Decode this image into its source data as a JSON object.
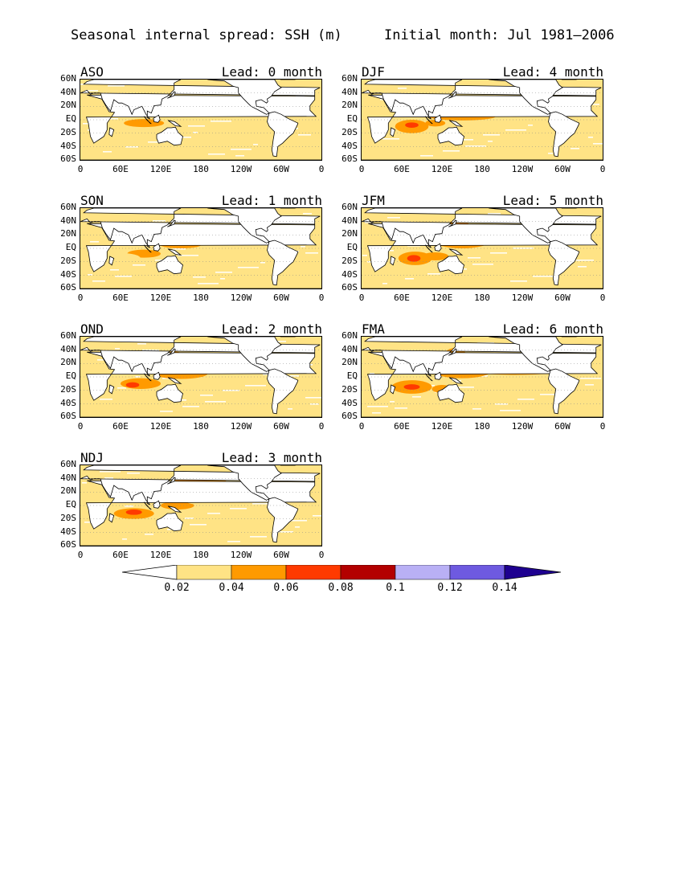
{
  "header": {
    "title_left": "Seasonal internal spread: SSH (m)",
    "title_right": "Initial month: Jul 1981—2006"
  },
  "axes": {
    "lat_labels": [
      "60N",
      "40N",
      "20N",
      "EQ",
      "20S",
      "40S",
      "60S"
    ],
    "lon_labels": [
      "0",
      "60E",
      "120E",
      "180",
      "120W",
      "60W",
      "0"
    ]
  },
  "panels": [
    {
      "season": "ASO",
      "lead": "Lead: 0 month"
    },
    {
      "season": "DJF",
      "lead": "Lead: 4 month"
    },
    {
      "season": "SON",
      "lead": "Lead: 1 month"
    },
    {
      "season": "JFM",
      "lead": "Lead: 5 month"
    },
    {
      "season": "OND",
      "lead": "Lead: 2 month"
    },
    {
      "season": "FMA",
      "lead": "Lead: 6 month"
    },
    {
      "season": "NDJ",
      "lead": "Lead: 3 month"
    }
  ],
  "colorbar": {
    "labels": [
      "0.02",
      "0.04",
      "0.06",
      "0.08",
      "0.1",
      "0.12",
      "0.14"
    ],
    "colors": [
      "#ffffff",
      "#ffe385",
      "#ff9a00",
      "#ff3a00",
      "#b30000",
      "#b9b0f5",
      "#6e5ae0",
      "#1e0090"
    ]
  }
}
